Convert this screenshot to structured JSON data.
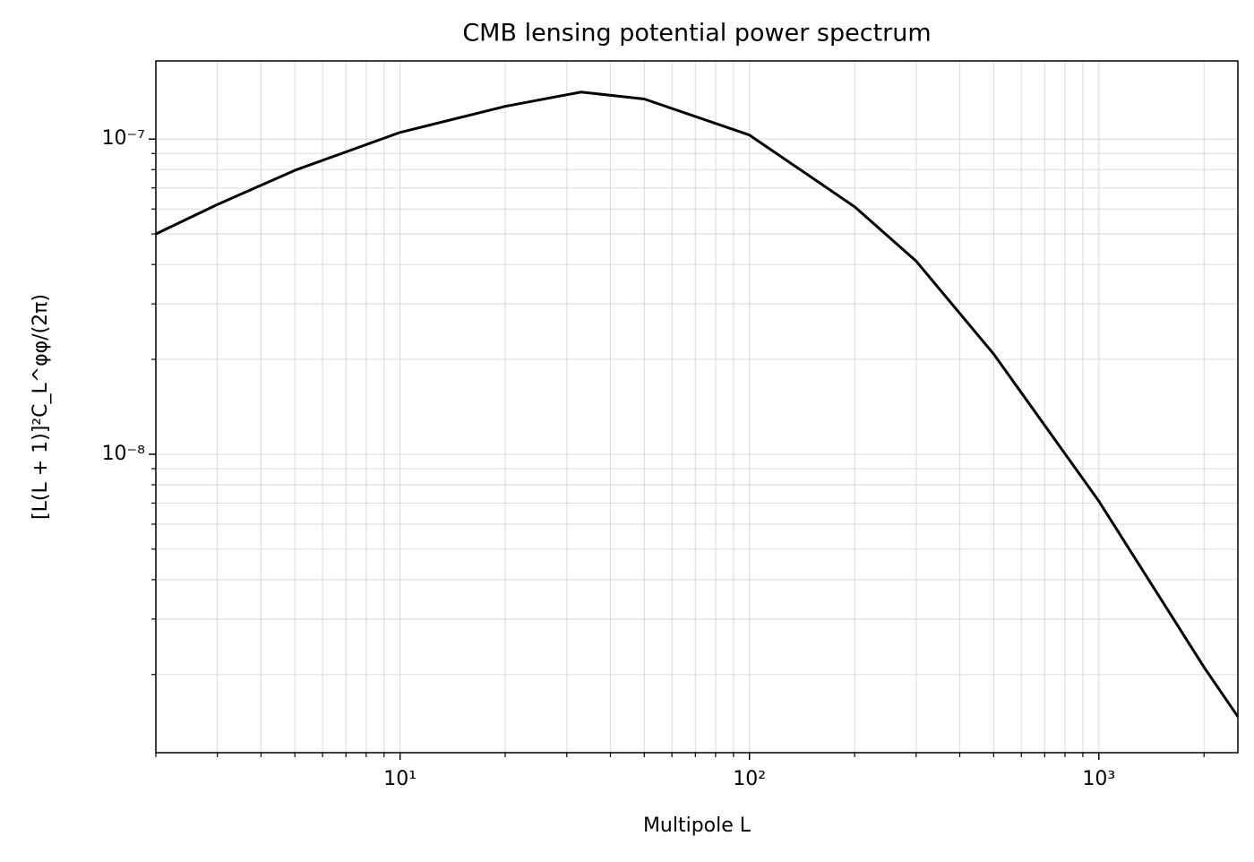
{
  "chart_data": {
    "type": "line",
    "title": "CMB lensing potential power spectrum",
    "xlabel": "Multipole L",
    "ylabel": "[L(L + 1)]²C_L^φφ/(2π)",
    "xscale": "log",
    "yscale": "log",
    "grid": true,
    "xlim": [
      2,
      2500
    ],
    "ylim": [
      1.13e-09,
      1.77e-07
    ],
    "xticks": [
      {
        "value": 10,
        "label": "10¹"
      },
      {
        "value": 100,
        "label": "10²"
      },
      {
        "value": 1000,
        "label": "10³"
      }
    ],
    "yticks": [
      {
        "value": 1e-08,
        "label": "10⁻⁸"
      },
      {
        "value": 1e-07,
        "label": "10⁻⁷"
      }
    ],
    "xminorticks": [
      2,
      3,
      4,
      5,
      6,
      7,
      8,
      9,
      20,
      30,
      40,
      50,
      60,
      70,
      80,
      90,
      200,
      300,
      400,
      500,
      600,
      700,
      800,
      900,
      2000
    ],
    "yminorticks": [
      2e-09,
      3e-09,
      4e-09,
      5e-09,
      6e-09,
      7e-09,
      8e-09,
      9e-09,
      2e-08,
      3e-08,
      4e-08,
      5e-08,
      6e-08,
      7e-08,
      8e-08,
      9e-08
    ],
    "x": [
      2,
      3,
      5,
      10,
      20,
      33,
      50,
      100,
      200,
      300,
      500,
      1000,
      2000,
      2500
    ],
    "series": [
      {
        "color": "#000000",
        "values": [
          5e-08,
          6.2e-08,
          7.96e-08,
          1.05e-07,
          1.27e-07,
          1.41e-07,
          1.34e-07,
          1.03e-07,
          6.1e-08,
          4.1e-08,
          2.08e-08,
          7.1e-09,
          2.11e-09,
          1.47e-09
        ]
      }
    ]
  }
}
